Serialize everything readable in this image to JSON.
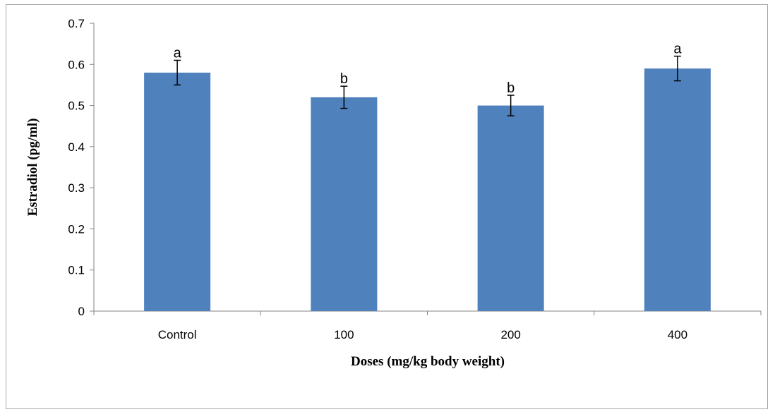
{
  "chart_data": {
    "type": "bar",
    "title": "",
    "xlabel": "Doses (mg/kg body weight)",
    "ylabel": "Estradiol (pg/ml)",
    "categories": [
      "Control",
      "100",
      "200",
      "400"
    ],
    "values": [
      0.58,
      0.52,
      0.5,
      0.59
    ],
    "errors": [
      0.03,
      0.027,
      0.025,
      0.03
    ],
    "significance_labels": [
      "a",
      "b",
      "b",
      "a"
    ],
    "ylim": [
      0,
      0.7
    ],
    "yticks": [
      0,
      0.1,
      0.2,
      0.3,
      0.4,
      0.5,
      0.6,
      0.7
    ],
    "ytick_labels": [
      "0",
      "0.1",
      "0.2",
      "0.3",
      "0.4",
      "0.5",
      "0.6",
      "0.7"
    ],
    "bar_color": "#4F81BD",
    "grid": false,
    "legend": "none"
  }
}
